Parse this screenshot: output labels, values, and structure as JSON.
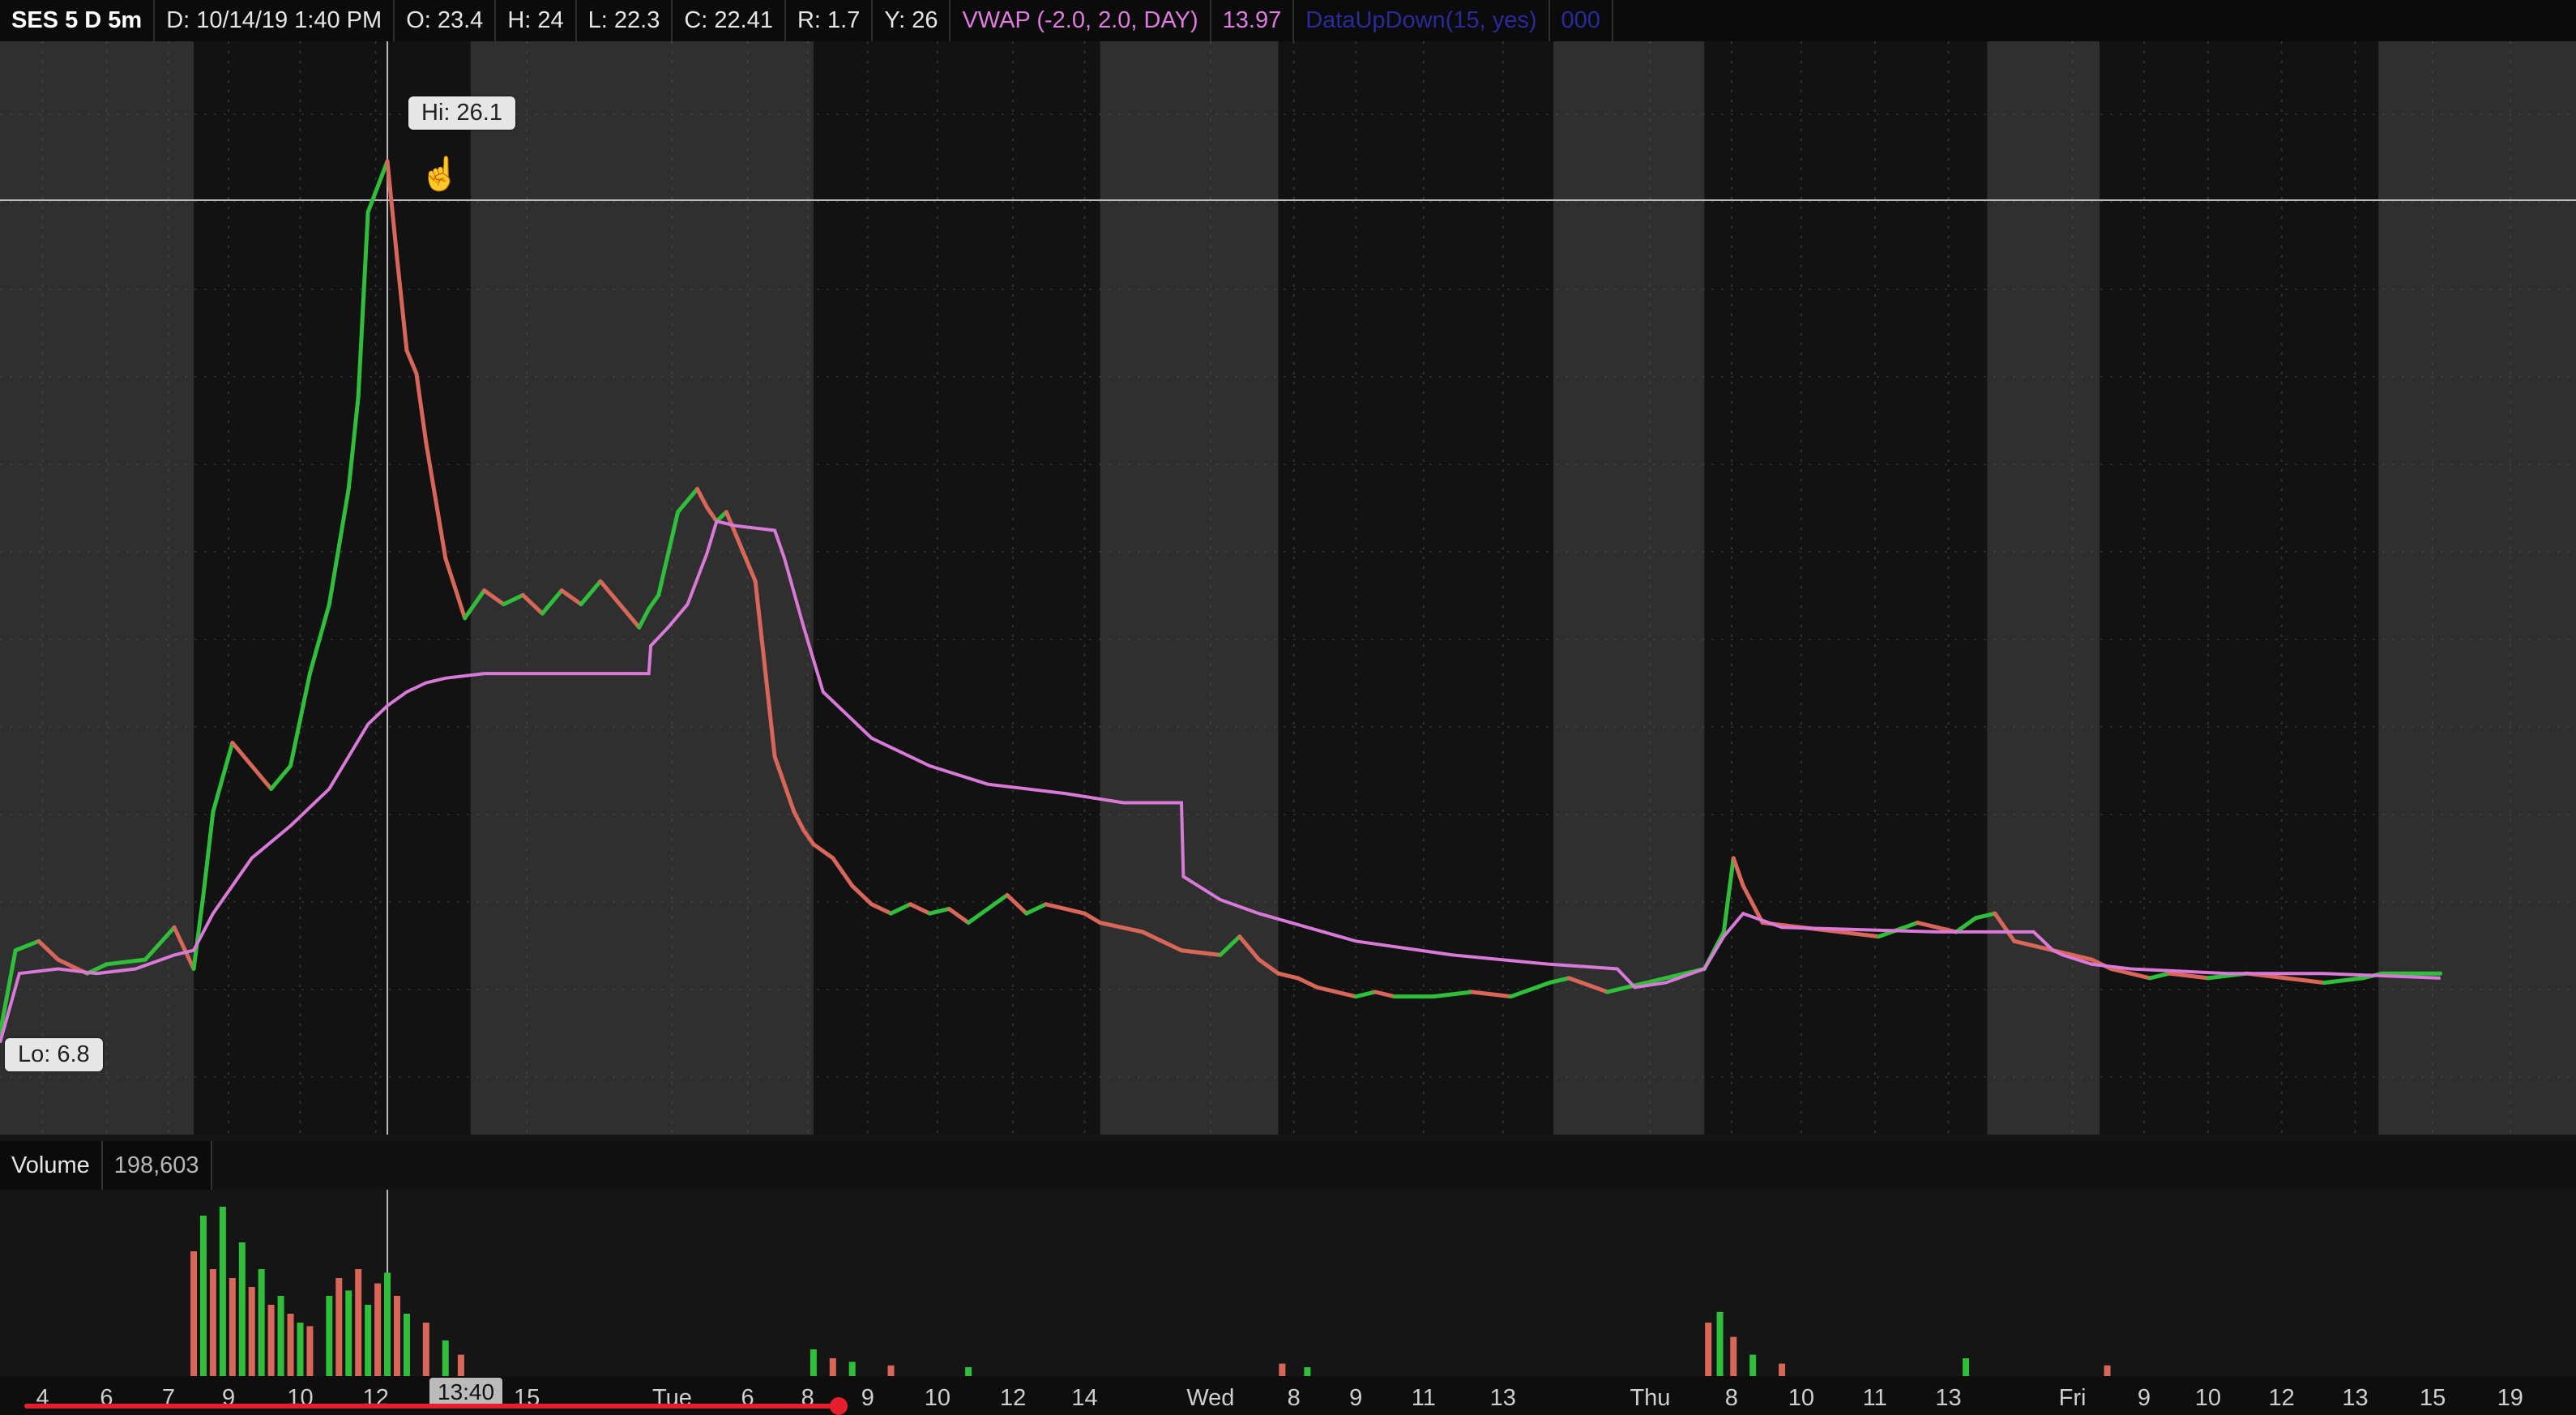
{
  "header": {
    "symbol": "SES 5 D 5m",
    "date": "D: 10/14/19 1:40 PM",
    "open": "O: 23.4",
    "high": "H: 24",
    "low": "L: 22.3",
    "close": "C: 22.41",
    "range": "R: 1.7",
    "y": "Y: 26",
    "vwap_label": "VWAP (-2.0, 2.0, DAY)",
    "vwap_value": "13.97",
    "study_label": "DataUpDown(15, yes)",
    "study_value": "000"
  },
  "annotations": {
    "hi_label": "Hi: 26.1",
    "lo_label": "Lo: 6.8",
    "cursor_time": "13:40"
  },
  "volume": {
    "label": "Volume",
    "value": "198,603"
  },
  "colors": {
    "up": "#2fbf3a",
    "down": "#d8675a",
    "vwap": "#d97ad9",
    "session_dark": "#121212",
    "session_light": "#2f2f2f",
    "scrubber": "#e5202e"
  },
  "chart_data": {
    "type": "line",
    "title": "SES 5 D 5m",
    "xlabel": "",
    "ylabel": "",
    "ylim": [
      6.8,
      26.1
    ],
    "grid": true,
    "sessions": [
      {
        "type": "ext",
        "start": 0,
        "end": 1.0
      },
      {
        "type": "rth",
        "start": 1.0,
        "end": 2.43
      },
      {
        "type": "ext",
        "start": 2.43,
        "end": 4.2
      },
      {
        "type": "rth",
        "start": 4.2,
        "end": 5.68
      },
      {
        "type": "ext",
        "start": 5.68,
        "end": 6.6
      },
      {
        "type": "rth",
        "start": 6.6,
        "end": 8.02
      },
      {
        "type": "ext",
        "start": 8.02,
        "end": 8.8
      },
      {
        "type": "rth",
        "start": 8.8,
        "end": 10.26
      },
      {
        "type": "ext",
        "start": 10.26,
        "end": 10.84
      },
      {
        "type": "rth",
        "start": 10.84,
        "end": 12.28
      },
      {
        "type": "ext",
        "start": 12.28,
        "end": 13.3
      }
    ],
    "time_ticks": [
      {
        "label": "4",
        "x": 0.22
      },
      {
        "label": "6",
        "x": 0.55
      },
      {
        "label": "7",
        "x": 0.87
      },
      {
        "label": "9",
        "x": 1.18
      },
      {
        "label": "10",
        "x": 1.55
      },
      {
        "label": "12",
        "x": 1.94
      },
      {
        "label": "15",
        "x": 2.72
      },
      {
        "label": "Tue",
        "x": 3.47
      },
      {
        "label": "6",
        "x": 3.86
      },
      {
        "label": "8",
        "x": 4.17
      },
      {
        "label": "9",
        "x": 4.48
      },
      {
        "label": "10",
        "x": 4.84
      },
      {
        "label": "12",
        "x": 5.23
      },
      {
        "label": "14",
        "x": 5.6
      },
      {
        "label": "Wed",
        "x": 6.25
      },
      {
        "label": "8",
        "x": 6.68
      },
      {
        "label": "9",
        "x": 7.0
      },
      {
        "label": "11",
        "x": 7.35
      },
      {
        "label": "13",
        "x": 7.76
      },
      {
        "label": "Thu",
        "x": 8.52
      },
      {
        "label": "8",
        "x": 8.94
      },
      {
        "label": "10",
        "x": 9.3
      },
      {
        "label": "11",
        "x": 9.68
      },
      {
        "label": "13",
        "x": 10.06
      },
      {
        "label": "Fri",
        "x": 10.7
      },
      {
        "label": "9",
        "x": 11.07
      },
      {
        "label": "10",
        "x": 11.4
      },
      {
        "label": "12",
        "x": 11.78
      },
      {
        "label": "13",
        "x": 12.16
      },
      {
        "label": "15",
        "x": 12.56
      },
      {
        "label": "19",
        "x": 12.96
      }
    ],
    "series": [
      {
        "kind": "price",
        "x": [
          0,
          0.08,
          0.2,
          0.3,
          0.45,
          0.55,
          0.75,
          0.9,
          1.0,
          1.05,
          1.1,
          1.2,
          1.3,
          1.4,
          1.5,
          1.6,
          1.7,
          1.8,
          1.85,
          1.9,
          2.0,
          2.05,
          2.1,
          2.15,
          2.2,
          2.3,
          2.4,
          2.5,
          2.6,
          2.7,
          2.8,
          2.9,
          3.0,
          3.1,
          3.2,
          3.3,
          3.35,
          3.4,
          3.5,
          3.6,
          3.65,
          3.7,
          3.75,
          3.8,
          3.9,
          4.0,
          4.1,
          4.15,
          4.2,
          4.3,
          4.4,
          4.5,
          4.6,
          4.7,
          4.8,
          4.9,
          5.0,
          5.1,
          5.2,
          5.3,
          5.4,
          5.5,
          5.6,
          5.68,
          5.9,
          6.1,
          6.3,
          6.4,
          6.5,
          6.6,
          6.7,
          6.8,
          6.9,
          7.0,
          7.1,
          7.2,
          7.4,
          7.6,
          7.8,
          8.0,
          8.1,
          8.3,
          8.5,
          8.7,
          8.8,
          8.9,
          8.95,
          9.0,
          9.1,
          9.3,
          9.5,
          9.7,
          9.9,
          10.1,
          10.2,
          10.3,
          10.4,
          10.6,
          10.8,
          10.9,
          11.0,
          11.1,
          11.2,
          11.4,
          11.6,
          11.8,
          12.0,
          12.2,
          12.3,
          12.5,
          12.6
        ],
        "y": [
          7.2,
          9.0,
          9.2,
          8.8,
          8.5,
          8.7,
          8.8,
          9.5,
          8.6,
          10.2,
          12.0,
          13.5,
          13.0,
          12.5,
          13.0,
          15.0,
          16.5,
          19.0,
          21.0,
          25.0,
          26.1,
          24.0,
          22.0,
          21.5,
          20.0,
          17.5,
          16.2,
          16.8,
          16.5,
          16.7,
          16.3,
          16.8,
          16.5,
          17.0,
          16.5,
          16.0,
          16.4,
          16.7,
          18.5,
          19.0,
          18.6,
          18.3,
          18.5,
          18.0,
          17.0,
          13.2,
          12.0,
          11.6,
          11.3,
          11.0,
          10.4,
          10.0,
          9.8,
          10.0,
          9.8,
          9.9,
          9.6,
          9.9,
          10.2,
          9.8,
          10.0,
          9.9,
          9.8,
          9.6,
          9.4,
          9.0,
          8.9,
          9.3,
          8.8,
          8.5,
          8.4,
          8.2,
          8.1,
          8.0,
          8.1,
          8.0,
          8.0,
          8.1,
          8.0,
          8.3,
          8.4,
          8.1,
          8.3,
          8.5,
          8.6,
          9.4,
          11.0,
          10.4,
          9.6,
          9.5,
          9.4,
          9.3,
          9.6,
          9.4,
          9.7,
          9.8,
          9.2,
          9.0,
          8.8,
          8.6,
          8.5,
          8.4,
          8.5,
          8.4,
          8.5,
          8.4,
          8.3,
          8.4,
          8.5,
          8.5,
          8.5
        ]
      },
      {
        "name": "VWAP",
        "kind": "vwap",
        "x": [
          0,
          0.1,
          0.3,
          0.5,
          0.7,
          0.9,
          1.0,
          1.1,
          1.3,
          1.5,
          1.7,
          1.8,
          1.9,
          2.0,
          2.1,
          2.2,
          2.3,
          2.5,
          3.0,
          3.35,
          3.36,
          3.45,
          3.55,
          3.65,
          3.7,
          3.8,
          4.0,
          4.05,
          4.15,
          4.25,
          4.5,
          4.8,
          5.1,
          5.5,
          5.8,
          6.1,
          6.11,
          6.3,
          6.5,
          7.0,
          7.5,
          8.0,
          8.35,
          8.44,
          8.6,
          8.8,
          8.9,
          9.0,
          9.2,
          10.0,
          10.5,
          10.6,
          10.65,
          10.8,
          11.0,
          11.5,
          12.0,
          12.6
        ],
        "y": [
          7.0,
          8.5,
          8.6,
          8.5,
          8.6,
          8.9,
          9.0,
          9.8,
          11.0,
          11.7,
          12.5,
          13.2,
          13.9,
          14.3,
          14.6,
          14.8,
          14.9,
          15.0,
          15.0,
          15.0,
          15.6,
          16.0,
          16.5,
          17.6,
          18.3,
          18.2,
          18.1,
          17.5,
          16.0,
          14.6,
          13.6,
          13.0,
          12.6,
          12.4,
          12.2,
          12.2,
          10.6,
          10.1,
          9.8,
          9.2,
          8.9,
          8.7,
          8.6,
          8.2,
          8.3,
          8.6,
          9.3,
          9.8,
          9.5,
          9.4,
          9.4,
          9.0,
          8.9,
          8.7,
          8.6,
          8.5,
          8.5,
          8.4
        ]
      }
    ],
    "volume_bars": [
      {
        "x": 1.0,
        "v": 0.7
      },
      {
        "x": 1.05,
        "v": 0.9
      },
      {
        "x": 1.1,
        "v": 0.6
      },
      {
        "x": 1.15,
        "v": 0.95
      },
      {
        "x": 1.2,
        "v": 0.55
      },
      {
        "x": 1.25,
        "v": 0.75
      },
      {
        "x": 1.3,
        "v": 0.5
      },
      {
        "x": 1.35,
        "v": 0.6
      },
      {
        "x": 1.4,
        "v": 0.4
      },
      {
        "x": 1.45,
        "v": 0.45
      },
      {
        "x": 1.5,
        "v": 0.35
      },
      {
        "x": 1.55,
        "v": 0.3
      },
      {
        "x": 1.6,
        "v": 0.28
      },
      {
        "x": 1.7,
        "v": 0.45
      },
      {
        "x": 1.75,
        "v": 0.55
      },
      {
        "x": 1.8,
        "v": 0.48
      },
      {
        "x": 1.85,
        "v": 0.6
      },
      {
        "x": 1.9,
        "v": 0.4
      },
      {
        "x": 1.95,
        "v": 0.52
      },
      {
        "x": 2.0,
        "v": 0.58
      },
      {
        "x": 2.05,
        "v": 0.45
      },
      {
        "x": 2.1,
        "v": 0.35
      },
      {
        "x": 2.2,
        "v": 0.3
      },
      {
        "x": 2.3,
        "v": 0.2
      },
      {
        "x": 2.38,
        "v": 0.12
      },
      {
        "x": 4.2,
        "v": 0.15
      },
      {
        "x": 4.3,
        "v": 0.1
      },
      {
        "x": 4.4,
        "v": 0.08
      },
      {
        "x": 4.6,
        "v": 0.06
      },
      {
        "x": 5.0,
        "v": 0.05
      },
      {
        "x": 6.62,
        "v": 0.07
      },
      {
        "x": 6.75,
        "v": 0.05
      },
      {
        "x": 8.82,
        "v": 0.3
      },
      {
        "x": 8.88,
        "v": 0.36
      },
      {
        "x": 8.95,
        "v": 0.22
      },
      {
        "x": 9.05,
        "v": 0.12
      },
      {
        "x": 9.2,
        "v": 0.07
      },
      {
        "x": 10.15,
        "v": 0.1
      },
      {
        "x": 10.88,
        "v": 0.06
      }
    ]
  }
}
